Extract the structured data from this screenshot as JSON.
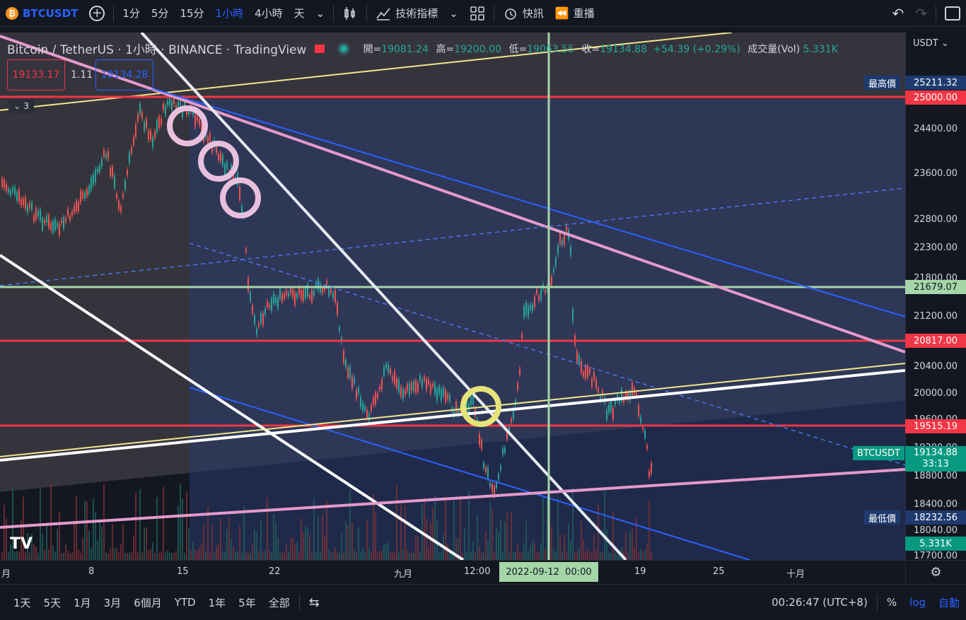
{
  "toolbar": {
    "symbol": "BTCUSDT",
    "intervals": [
      "1分",
      "5分",
      "15分",
      "1小時",
      "4小時",
      "天"
    ],
    "active_interval": "1小時",
    "indicators_label": "技術指標",
    "alert_label": "快訊",
    "replay_label": "重播"
  },
  "legend": {
    "title": "Bitcoin / TetherUS · 1小時 · BINANCE · TradingView",
    "open_label": "開",
    "open": "19081.24",
    "high_label": "高",
    "high": "19200.00",
    "low_label": "低",
    "low": "19063.55",
    "close_label": "收",
    "close": "19134.88",
    "change": "+54.39 (+0.29%)",
    "volume_label": "成交量(Vol)",
    "volume": "5.331K",
    "bid": "19133.17",
    "spread": "1.11",
    "ask": "19134.28",
    "indicator_count": "3"
  },
  "price_axis": {
    "currency": "USDT",
    "ticks": [
      "24400.00",
      "23600.00",
      "22800.00",
      "22300.00",
      "21800.00",
      "21200.00",
      "20400.00",
      "20000.00",
      "19600.00",
      "19200.00",
      "18800.00",
      "18400.00",
      "18040.00",
      "17700.00"
    ],
    "high_label": "最高價",
    "high_value": "25211.32",
    "low_label": "最低價",
    "low_value": "18232.56",
    "level_25000": "25000.00",
    "level_21679": "21679.07",
    "level_20817": "20817.00",
    "level_19515": "19515.19",
    "last_symbol": "BTCUSDT",
    "last_price": "19134.88",
    "countdown": "33:13",
    "volume_tag": "5.331K"
  },
  "time_axis": {
    "ticks": [
      "月",
      "8",
      "15",
      "22",
      "九月",
      "12:00",
      "19",
      "25",
      "十月"
    ],
    "crosshair_label": "2022-09-12  00:00"
  },
  "bottom": {
    "ranges": [
      "1天",
      "5天",
      "1月",
      "3月",
      "6個月",
      "YTD",
      "1年",
      "5年",
      "全部"
    ],
    "clock": "00:26:47 (UTC+8)",
    "percent": "%",
    "log": "log",
    "auto": "自動"
  },
  "colors": {
    "bull": "#26a69a",
    "bear": "#ef5350",
    "red_line": "#f23645",
    "green_line": "#a5d6a7",
    "pink_line": "#e59acb",
    "blue_line": "#2962ff",
    "yellow_line": "#f0e68c"
  }
}
